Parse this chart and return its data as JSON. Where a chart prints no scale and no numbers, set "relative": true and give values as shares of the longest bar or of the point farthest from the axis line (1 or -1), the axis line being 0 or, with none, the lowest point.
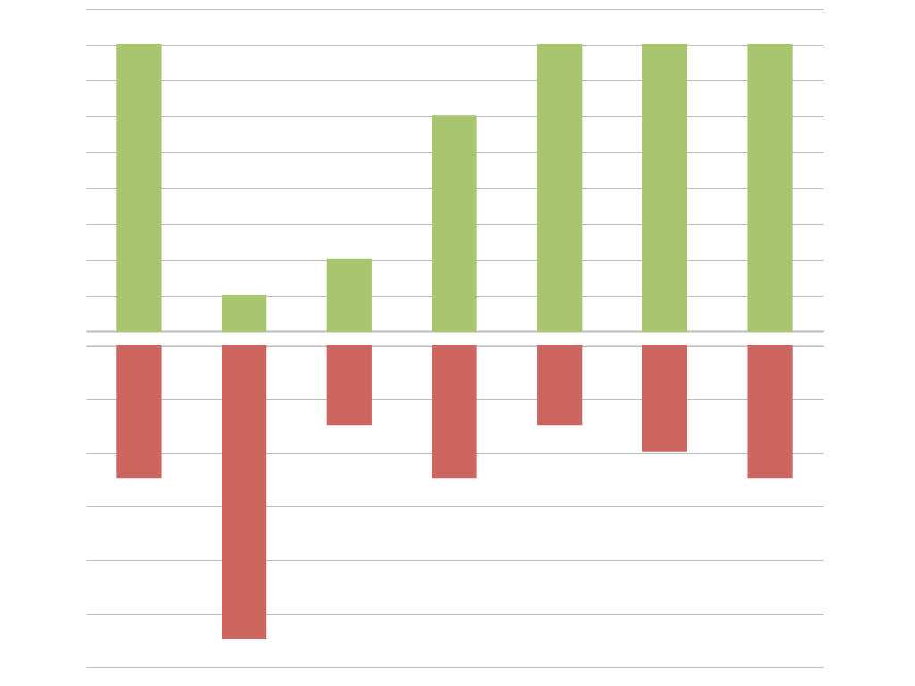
{
  "chart_data": [
    {
      "type": "bar",
      "categories": [
        null,
        null,
        null,
        null,
        null,
        null,
        null
      ],
      "values": [
        1,
        0.125,
        0.25,
        0.75,
        1,
        1,
        1
      ],
      "color": "#a9c66e",
      "relative": true,
      "grid": "y",
      "tick_labels": false
    },
    {
      "type": "bar",
      "categories": [
        null,
        null,
        null,
        null,
        null,
        null,
        null
      ],
      "values": [
        -0.45,
        -1,
        -0.27,
        -0.45,
        -0.27,
        -0.36,
        -0.45
      ],
      "color": "#cd6660",
      "relative": true,
      "grid": "y",
      "tick_labels": false
    }
  ]
}
